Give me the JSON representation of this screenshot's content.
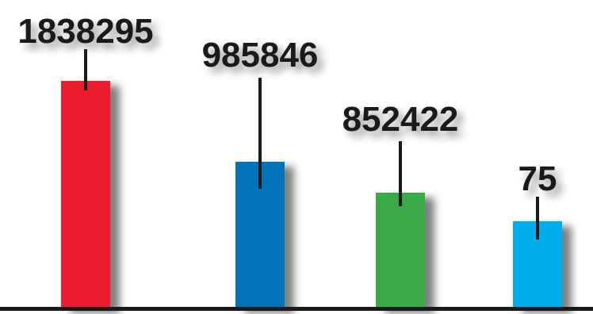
{
  "chart_data": {
    "type": "bar",
    "title": "",
    "xlabel": "",
    "ylabel": "",
    "grid": false,
    "legend": "none",
    "categories": [
      "",
      "",
      "",
      ""
    ],
    "values": [
      1838295,
      985846,
      852422,
      75
    ],
    "value_labels": [
      "1838295",
      "985846",
      "852422",
      "75"
    ],
    "colors": [
      "#ec1c2e",
      "#0073b9",
      "#3aaa48",
      "#00aeee"
    ],
    "axis_color": "#1a1a1a",
    "label_color": "#1a1a1a",
    "note": "bar heights in the original are not proportional to the printed values"
  }
}
